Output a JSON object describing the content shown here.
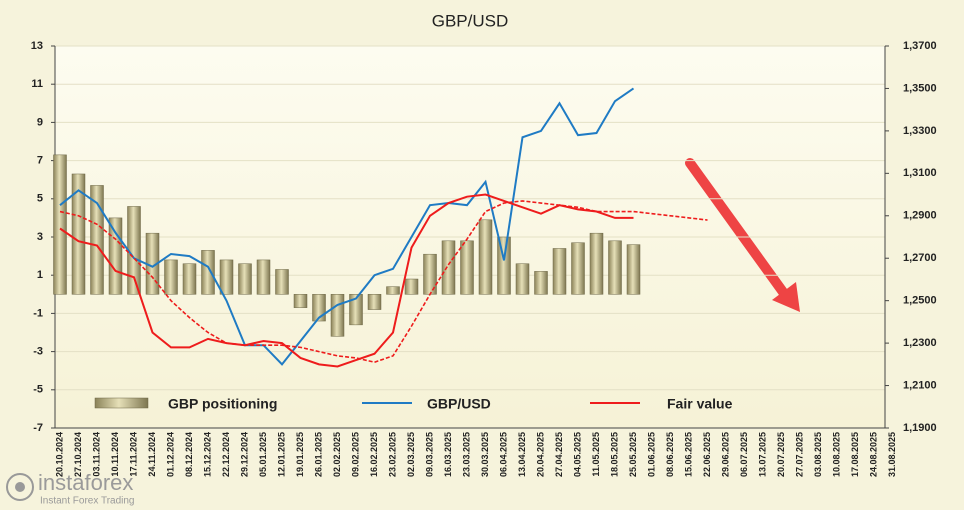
{
  "chart_data": {
    "type": "bar",
    "title": "GBP/USD",
    "categories": [
      "20.10.2024",
      "27.10.2024",
      "03.11.2024",
      "10.11.2024",
      "17.11.2024",
      "24.11.2024",
      "01.12.2024",
      "08.12.2024",
      "15.12.2024",
      "22.12.2024",
      "29.12.2024",
      "05.01.2025",
      "12.01.2025",
      "19.01.2025",
      "26.01.2025",
      "02.02.2025",
      "09.02.2025",
      "16.02.2025",
      "23.02.2025",
      "02.03.2025",
      "09.03.2025",
      "16.03.2025",
      "23.03.2025",
      "30.03.2025",
      "06.04.2025",
      "13.04.2025",
      "20.04.2025",
      "27.04.2025",
      "04.05.2025",
      "11.05.2025",
      "18.05.2025",
      "25.05.2025",
      "01.06.2025",
      "08.06.2025",
      "15.06.2025",
      "22.06.2025",
      "29.06.2025",
      "06.07.2025",
      "13.07.2025",
      "20.07.2025",
      "27.07.2025",
      "03.08.2025",
      "10.08.2025",
      "17.08.2025",
      "24.08.2025",
      "31.08.2025"
    ],
    "series": [
      {
        "name": "GBP positioning",
        "type": "bar",
        "color": "#b5ad80",
        "values": [
          7.3,
          6.3,
          5.7,
          4.0,
          4.6,
          3.2,
          1.8,
          1.6,
          2.3,
          1.8,
          1.6,
          1.8,
          1.3,
          -0.7,
          -1.4,
          -2.2,
          -1.6,
          -0.8,
          0.4,
          0.8,
          2.1,
          2.8,
          2.8,
          3.9,
          3.0,
          1.6,
          1.2,
          2.4,
          2.7,
          3.2,
          2.8,
          2.6,
          null,
          null,
          null,
          null,
          null,
          null,
          null,
          null,
          null,
          null,
          null,
          null,
          null,
          null
        ]
      },
      {
        "name": "GBP/USD",
        "type": "line",
        "axis": "y2",
        "color": "#1f7bc4",
        "values": [
          1.295,
          1.302,
          1.296,
          1.282,
          1.27,
          1.266,
          1.272,
          1.271,
          1.266,
          1.25,
          1.229,
          1.229,
          1.22,
          1.231,
          1.242,
          1.248,
          1.251,
          1.262,
          1.265,
          1.28,
          1.295,
          1.296,
          1.295,
          1.306,
          1.269,
          1.327,
          1.33,
          1.343,
          1.328,
          1.329,
          1.344,
          1.35,
          null,
          null,
          null,
          null,
          null,
          null,
          null,
          null,
          null,
          null,
          null,
          null,
          null,
          null
        ]
      },
      {
        "name": "Fair value",
        "type": "line",
        "axis": "y2",
        "color": "#ee1c1c",
        "values": [
          1.284,
          1.278,
          1.276,
          1.264,
          1.261,
          1.235,
          1.228,
          1.228,
          1.232,
          1.23,
          1.229,
          1.231,
          1.23,
          1.223,
          1.22,
          1.219,
          1.222,
          1.225,
          1.235,
          1.275,
          1.29,
          1.296,
          1.299,
          1.3,
          1.297,
          1.294,
          1.291,
          1.295,
          1.293,
          1.292,
          1.289,
          1.289,
          null,
          null,
          null,
          null,
          null,
          null,
          null,
          null,
          null,
          null,
          null,
          null,
          null,
          null
        ]
      },
      {
        "type": "line",
        "axis": "y2",
        "dashed": true,
        "color": "#ee1c1c",
        "values": [
          1.292,
          1.29,
          1.286,
          1.279,
          1.27,
          1.261,
          1.25,
          1.242,
          1.235,
          1.23,
          1.229,
          1.229,
          1.229,
          1.228,
          1.226,
          1.224,
          1.223,
          1.221,
          1.224,
          1.238,
          1.253,
          1.267,
          1.279,
          1.292,
          1.296,
          1.297,
          1.296,
          1.295,
          1.294,
          1.292,
          1.292,
          1.292,
          1.291,
          1.29,
          1.289,
          1.288,
          null,
          null,
          null,
          null,
          null,
          null,
          null,
          null,
          null,
          null
        ]
      }
    ],
    "ylim": [
      -7,
      13
    ],
    "yticks": [
      -7,
      -5,
      -3,
      -1,
      1,
      3,
      5,
      7,
      9,
      11,
      13
    ],
    "y2lim": [
      1.19,
      1.37
    ],
    "y2ticks": [
      {
        "value": 1.19,
        "label": "1,1900"
      },
      {
        "value": 1.21,
        "label": "1,2100"
      },
      {
        "value": 1.23,
        "label": "1,2300"
      },
      {
        "value": 1.25,
        "label": "1,2500"
      },
      {
        "value": 1.27,
        "label": "1,2700"
      },
      {
        "value": 1.29,
        "label": "1,2900"
      },
      {
        "value": 1.31,
        "label": "1,3100"
      },
      {
        "value": 1.33,
        "label": "1,3300"
      },
      {
        "value": 1.35,
        "label": "1,3500"
      },
      {
        "value": 1.37,
        "label": "1,3700"
      }
    ],
    "grid": true
  },
  "watermark": {
    "brand": "instaforex",
    "tagline": "Instant Forex Trading"
  }
}
